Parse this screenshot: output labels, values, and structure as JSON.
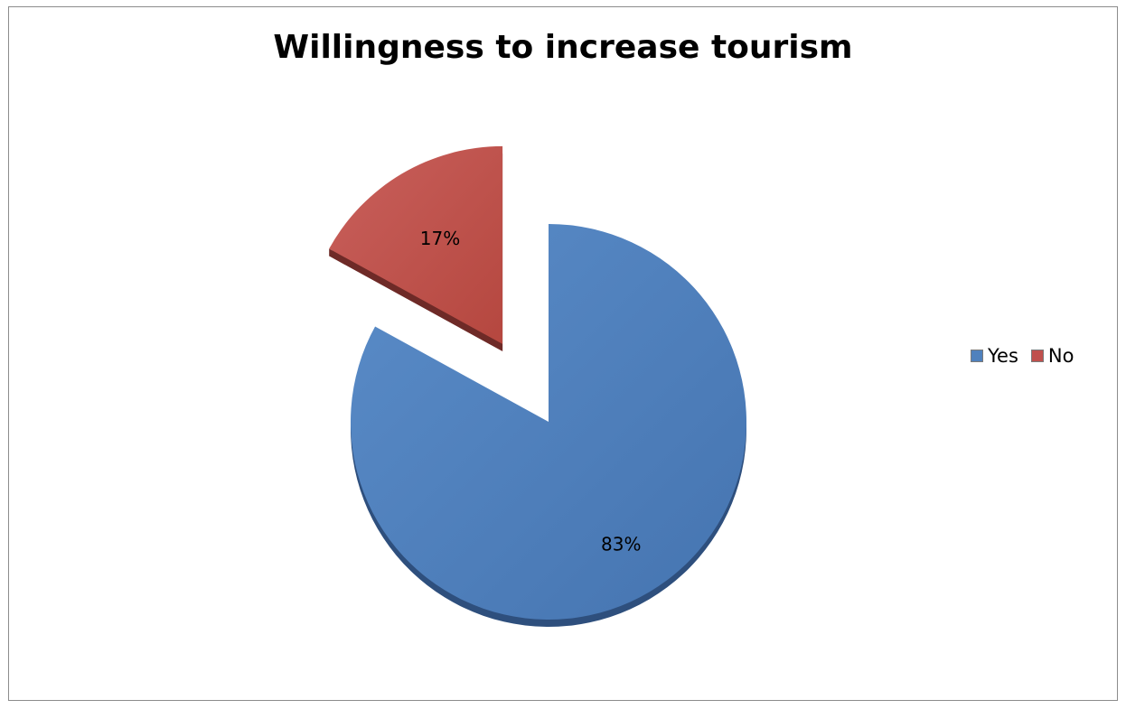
{
  "chart_data": {
    "type": "pie",
    "title": "Willingness to increase tourism",
    "categories": [
      "Yes",
      "No"
    ],
    "values": [
      83,
      17
    ],
    "data_labels": [
      "83%",
      "17%"
    ],
    "colors": [
      "#4F81BD",
      "#C0504D"
    ],
    "exploded": [
      "No"
    ],
    "legend_position": "right"
  }
}
